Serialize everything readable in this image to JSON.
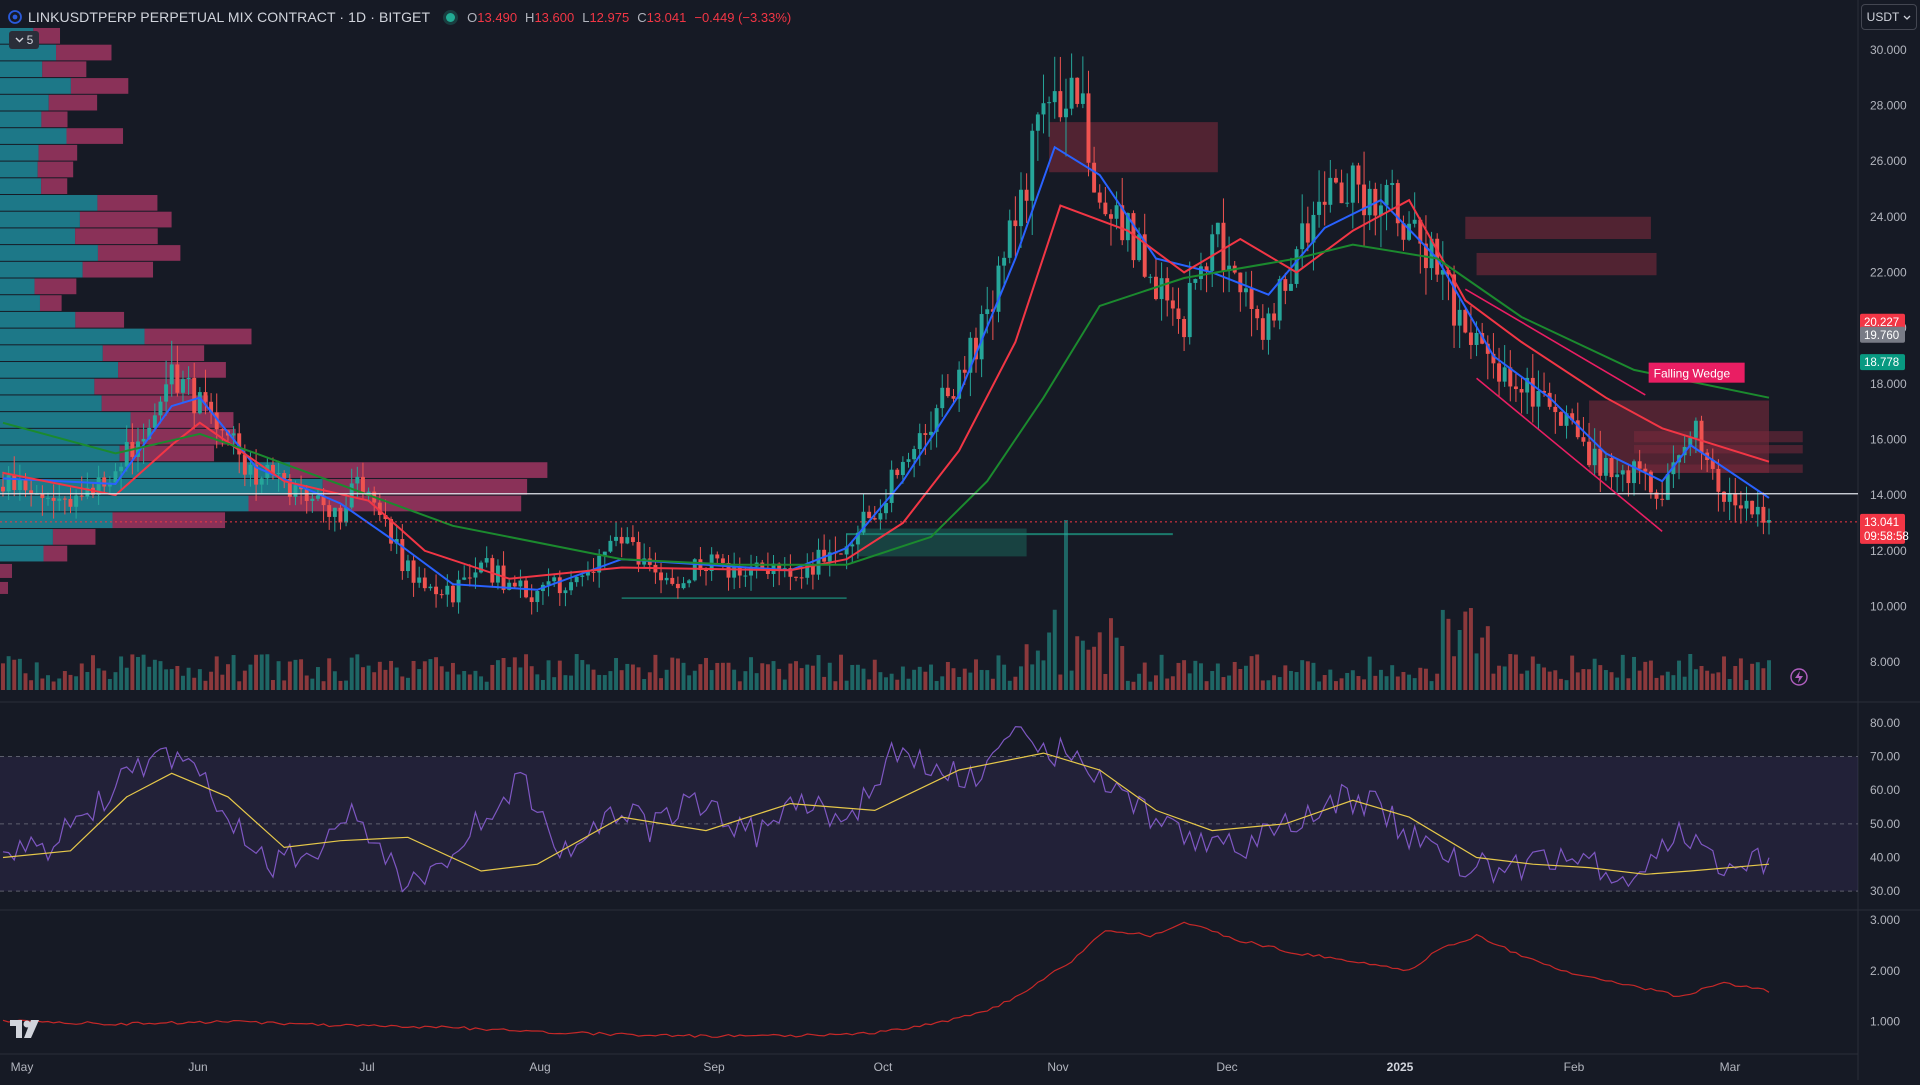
{
  "header": {
    "symbol": "LINKUSDTPERP PERPETUAL MIX CONTRACT · 1D · BITGET",
    "ohlc": [
      {
        "k": "O",
        "v": "13.490"
      },
      {
        "k": "H",
        "v": "13.600"
      },
      {
        "k": "L",
        "v": "12.975"
      },
      {
        "k": "C",
        "v": "13.041"
      },
      {
        "k": "",
        "v": "−0.449 (−3.33%)"
      }
    ],
    "collapse_label": "5",
    "currency": "USDT"
  },
  "colors": {
    "background": "#161a25",
    "up": "#26a69a",
    "down": "#ef5350",
    "ema_fast": "#2962ff",
    "ema_mid": "#f23645",
    "ema_slow": "#1b8a2e",
    "rsi": "#7e57c2",
    "rsi_ma": "#e6c84a",
    "pattern": "#e91e63"
  },
  "icons": {
    "collapse": "chevron-down-icon",
    "currency": "chevron-down-icon",
    "logo": "tradingview-logo-icon",
    "alert": "lightning-icon"
  },
  "chart_data": [
    {
      "type": "candlestick",
      "title": "LINKUSDTPERP PERPETUAL MIX CONTRACT · 1D · BITGET",
      "x_ticks": [
        "May",
        "Jun",
        "Jul",
        "Aug",
        "Sep",
        "Oct",
        "Nov",
        "Dec",
        "2025",
        "Feb",
        "Mar"
      ],
      "y_ticks": [
        "8.000",
        "10.000",
        "12.000",
        "14.000",
        "16.000",
        "18.000",
        "20.000",
        "22.000",
        "24.000",
        "26.000",
        "28.000",
        "30.000"
      ],
      "ylim": [
        7.0,
        31.5
      ],
      "close_path": [
        [
          0,
          14.3
        ],
        [
          10,
          13.9
        ],
        [
          20,
          14.6
        ],
        [
          25,
          16.5
        ],
        [
          30,
          18.5
        ],
        [
          35,
          17.3
        ],
        [
          40,
          16.0
        ],
        [
          45,
          14.8
        ],
        [
          50,
          14.2
        ],
        [
          55,
          14.0
        ],
        [
          60,
          13.4
        ],
        [
          63,
          14.6
        ],
        [
          67,
          13.3
        ],
        [
          70,
          12.0
        ],
        [
          75,
          10.6
        ],
        [
          80,
          10.5
        ],
        [
          85,
          11.6
        ],
        [
          90,
          10.8
        ],
        [
          95,
          10.3
        ],
        [
          100,
          10.9
        ],
        [
          105,
          11.3
        ],
        [
          110,
          12.5
        ],
        [
          115,
          11.3
        ],
        [
          120,
          11.0
        ],
        [
          125,
          11.6
        ],
        [
          130,
          11.4
        ],
        [
          135,
          11.2
        ],
        [
          140,
          11.3
        ],
        [
          145,
          11.6
        ],
        [
          150,
          12.4
        ],
        [
          155,
          13.6
        ],
        [
          160,
          15.0
        ],
        [
          165,
          16.8
        ],
        [
          170,
          18.5
        ],
        [
          175,
          20.2
        ],
        [
          180,
          24.0
        ],
        [
          185,
          27.5
        ],
        [
          190,
          29.2
        ],
        [
          195,
          25.0
        ],
        [
          200,
          23.5
        ],
        [
          205,
          21.5
        ],
        [
          210,
          20.3
        ],
        [
          215,
          23.5
        ],
        [
          220,
          21.0
        ],
        [
          225,
          20.0
        ],
        [
          230,
          23.0
        ],
        [
          235,
          24.5
        ],
        [
          240,
          25.0
        ],
        [
          245,
          24.5
        ],
        [
          250,
          24.0
        ],
        [
          255,
          22.0
        ],
        [
          260,
          19.8
        ],
        [
          265,
          18.5
        ],
        [
          270,
          18.0
        ],
        [
          275,
          17.5
        ],
        [
          280,
          16.0
        ],
        [
          285,
          15.0
        ],
        [
          290,
          14.8
        ],
        [
          295,
          14.2
        ],
        [
          300,
          16.5
        ],
        [
          305,
          14.5
        ],
        [
          310,
          13.5
        ],
        [
          314,
          13.04
        ]
      ],
      "series": [
        {
          "name": "EMA fast",
          "values": [
            [
              0,
              14.6
            ],
            [
              20,
              14.4
            ],
            [
              30,
              17.2
            ],
            [
              35,
              17.5
            ],
            [
              45,
              15.0
            ],
            [
              60,
              13.7
            ],
            [
              70,
              12.3
            ],
            [
              80,
              10.8
            ],
            [
              95,
              10.6
            ],
            [
              110,
              11.7
            ],
            [
              125,
              11.5
            ],
            [
              140,
              11.3
            ],
            [
              150,
              12.1
            ],
            [
              160,
              14.5
            ],
            [
              170,
              17.6
            ],
            [
              180,
              22.5
            ],
            [
              187,
              26.5
            ],
            [
              195,
              25.5
            ],
            [
              205,
              22.5
            ],
            [
              215,
              22.0
            ],
            [
              225,
              21.2
            ],
            [
              235,
              23.6
            ],
            [
              245,
              24.6
            ],
            [
              255,
              22.5
            ],
            [
              265,
              19.0
            ],
            [
              275,
              17.5
            ],
            [
              285,
              15.5
            ],
            [
              295,
              14.5
            ],
            [
              300,
              15.8
            ],
            [
              314,
              13.9
            ]
          ]
        },
        {
          "name": "EMA mid",
          "values": [
            [
              0,
              14.8
            ],
            [
              20,
              14.0
            ],
            [
              30,
              15.8
            ],
            [
              35,
              16.6
            ],
            [
              50,
              14.5
            ],
            [
              65,
              13.8
            ],
            [
              75,
              12.0
            ],
            [
              90,
              11.0
            ],
            [
              110,
              11.4
            ],
            [
              140,
              11.3
            ],
            [
              150,
              11.7
            ],
            [
              160,
              13.0
            ],
            [
              170,
              15.6
            ],
            [
              180,
              19.5
            ],
            [
              188,
              24.4
            ],
            [
              200,
              23.5
            ],
            [
              210,
              22.0
            ],
            [
              220,
              23.2
            ],
            [
              230,
              22.0
            ],
            [
              240,
              23.5
            ],
            [
              250,
              24.6
            ],
            [
              260,
              21.0
            ],
            [
              270,
              19.5
            ],
            [
              285,
              17.5
            ],
            [
              295,
              16.4
            ],
            [
              314,
              15.2
            ]
          ]
        },
        {
          "name": "EMA slow",
          "values": [
            [
              0,
              16.6
            ],
            [
              20,
              15.5
            ],
            [
              35,
              16.2
            ],
            [
              45,
              15.5
            ],
            [
              65,
              14.0
            ],
            [
              80,
              12.9
            ],
            [
              110,
              11.7
            ],
            [
              130,
              11.5
            ],
            [
              150,
              11.5
            ],
            [
              165,
              12.5
            ],
            [
              175,
              14.5
            ],
            [
              185,
              17.5
            ],
            [
              195,
              20.8
            ],
            [
              210,
              21.8
            ],
            [
              230,
              22.5
            ],
            [
              240,
              23.0
            ],
            [
              255,
              22.5
            ],
            [
              270,
              20.4
            ],
            [
              290,
              18.5
            ],
            [
              314,
              17.5
            ]
          ]
        }
      ],
      "horizontal_level": 14.05,
      "current_price_line": 13.04,
      "price_labels": [
        {
          "value": 20.227,
          "text": "20.227",
          "color": "#f23645"
        },
        {
          "value": 19.76,
          "text": "19.760",
          "color": "#787b86"
        },
        {
          "value": 18.778,
          "text": "18.778",
          "color": "#089981"
        },
        {
          "value": 13.041,
          "text": "13.041",
          "sub": "09:58:58",
          "color": "#f23645"
        }
      ],
      "pattern_label": "Falling Wedge",
      "order_blocks": [
        {
          "x": [
            186,
            216
          ],
          "y": [
            25.6,
            27.4
          ],
          "type": "bearish"
        },
        {
          "x": [
            260,
            293
          ],
          "y": [
            23.2,
            24.0
          ],
          "type": "bearish"
        },
        {
          "x": [
            262,
            294
          ],
          "y": [
            21.9,
            22.7
          ],
          "type": "bearish"
        },
        {
          "x": [
            282,
            314
          ],
          "y": [
            14.8,
            17.4
          ],
          "type": "bearish"
        },
        {
          "x": [
            152,
            182
          ],
          "y": [
            11.8,
            12.8
          ],
          "type": "bullish"
        }
      ]
    },
    {
      "type": "bar",
      "title": "Volume profile",
      "description_rows": 32
    },
    {
      "type": "line",
      "title": "RSI",
      "y_ticks": [
        "30.00",
        "40.00",
        "50.00",
        "60.00",
        "70.00",
        "80.00"
      ],
      "ylim": [
        25,
        85
      ],
      "bands": [
        30,
        50,
        70
      ],
      "series": [
        {
          "name": "RSI",
          "values": [
            [
              0,
              40
            ],
            [
              8,
              43
            ],
            [
              16,
              55
            ],
            [
              24,
              66
            ],
            [
              30,
              70
            ],
            [
              36,
              62
            ],
            [
              42,
              48
            ],
            [
              48,
              38
            ],
            [
              55,
              42
            ],
            [
              62,
              52
            ],
            [
              68,
              42
            ],
            [
              72,
              30
            ],
            [
              78,
              40
            ],
            [
              86,
              52
            ],
            [
              92,
              64
            ],
            [
              98,
              42
            ],
            [
              104,
              46
            ],
            [
              110,
              56
            ],
            [
              115,
              48
            ],
            [
              122,
              58
            ],
            [
              128,
              52
            ],
            [
              136,
              46
            ],
            [
              142,
              58
            ],
            [
              150,
              50
            ],
            [
              158,
              70
            ],
            [
              166,
              66
            ],
            [
              174,
              64
            ],
            [
              180,
              75
            ],
            [
              186,
              72
            ],
            [
              192,
              70
            ],
            [
              198,
              58
            ],
            [
              204,
              52
            ],
            [
              212,
              46
            ],
            [
              222,
              44
            ],
            [
              232,
              52
            ],
            [
              238,
              58
            ],
            [
              244,
              56
            ],
            [
              252,
              44
            ],
            [
              260,
              38
            ],
            [
              266,
              36
            ],
            [
              272,
              38
            ],
            [
              280,
              40
            ],
            [
              286,
              36
            ],
            [
              290,
              34
            ],
            [
              294,
              40
            ],
            [
              298,
              48
            ],
            [
              304,
              38
            ],
            [
              310,
              40
            ],
            [
              314,
              38
            ]
          ]
        },
        {
          "name": "RSI MA",
          "values": [
            [
              0,
              40
            ],
            [
              12,
              42
            ],
            [
              22,
              58
            ],
            [
              30,
              65
            ],
            [
              40,
              58
            ],
            [
              50,
              43
            ],
            [
              60,
              45
            ],
            [
              72,
              46
            ],
            [
              85,
              36
            ],
            [
              95,
              38
            ],
            [
              110,
              52
            ],
            [
              125,
              48
            ],
            [
              140,
              56
            ],
            [
              155,
              54
            ],
            [
              170,
              66
            ],
            [
              185,
              71
            ],
            [
              195,
              66
            ],
            [
              205,
              54
            ],
            [
              215,
              48
            ],
            [
              228,
              50
            ],
            [
              240,
              57
            ],
            [
              250,
              52
            ],
            [
              262,
              40
            ],
            [
              272,
              38
            ],
            [
              282,
              37
            ],
            [
              292,
              35
            ],
            [
              300,
              36
            ],
            [
              314,
              38
            ]
          ]
        }
      ]
    },
    {
      "type": "line",
      "title": "Oscillator",
      "y_ticks": [
        "1.000",
        "2.000",
        "3.000"
      ],
      "ylim": [
        0.4,
        3.2
      ],
      "series": [
        {
          "name": "",
          "values": [
            [
              0,
              1.02
            ],
            [
              20,
              0.95
            ],
            [
              40,
              1.0
            ],
            [
              60,
              0.92
            ],
            [
              80,
              0.88
            ],
            [
              100,
              0.78
            ],
            [
              120,
              0.72
            ],
            [
              140,
              0.72
            ],
            [
              155,
              0.78
            ],
            [
              165,
              0.95
            ],
            [
              175,
              1.2
            ],
            [
              182,
              1.6
            ],
            [
              190,
              2.2
            ],
            [
              196,
              2.8
            ],
            [
              204,
              2.7
            ],
            [
              210,
              2.95
            ],
            [
              220,
              2.6
            ],
            [
              230,
              2.35
            ],
            [
              240,
              2.2
            ],
            [
              250,
              2.0
            ],
            [
              255,
              2.4
            ],
            [
              262,
              2.7
            ],
            [
              270,
              2.3
            ],
            [
              280,
              1.9
            ],
            [
              290,
              1.7
            ],
            [
              298,
              1.5
            ],
            [
              306,
              1.75
            ],
            [
              314,
              1.6
            ]
          ]
        }
      ]
    }
  ]
}
